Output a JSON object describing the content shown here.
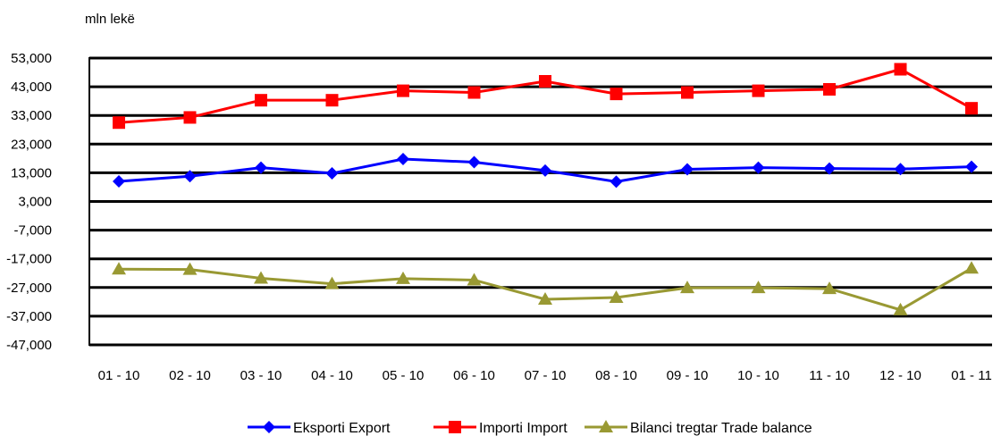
{
  "chart_data": {
    "type": "line",
    "unit_label": "mln lekë",
    "categories": [
      "01 - 10",
      "02 - 10",
      "03 - 10",
      "04 - 10",
      "05 - 10",
      "06 - 10",
      "07 - 10",
      "08 - 10",
      "09 - 10",
      "10 - 10",
      "11 - 10",
      "12 - 10",
      "01 - 11"
    ],
    "y_ticks": [
      53000,
      43000,
      33000,
      23000,
      13000,
      3000,
      -7000,
      -17000,
      -27000,
      -37000,
      -47000
    ],
    "y_tick_labels": [
      "53,000",
      "43,000",
      "33,000",
      "23,000",
      "13,000",
      "3,000",
      "-7,000",
      "-17,000",
      "-27,000",
      "-37,000",
      "-47,000"
    ],
    "ylim": [
      -47000,
      53000
    ],
    "grid": true,
    "legend_position": "bottom",
    "series": [
      {
        "name": "Eksporti Export",
        "color": "#0000ff",
        "marker": "diamond",
        "values": [
          10000,
          11800,
          14800,
          12800,
          17800,
          16700,
          13800,
          9900,
          14200,
          14800,
          14500,
          14300,
          15100
        ]
      },
      {
        "name": "Importi Import",
        "color": "#ff0000",
        "marker": "square",
        "values": [
          30500,
          32300,
          38300,
          38300,
          41600,
          41000,
          44900,
          40500,
          41000,
          41600,
          42100,
          49100,
          35500
        ]
      },
      {
        "name": "Bilanci tregtar Trade balance",
        "color": "#999933",
        "marker": "triangle",
        "values": [
          -20600,
          -20700,
          -23800,
          -25700,
          -23900,
          -24400,
          -31100,
          -30500,
          -27100,
          -27100,
          -27400,
          -34800,
          -20300
        ]
      }
    ]
  }
}
